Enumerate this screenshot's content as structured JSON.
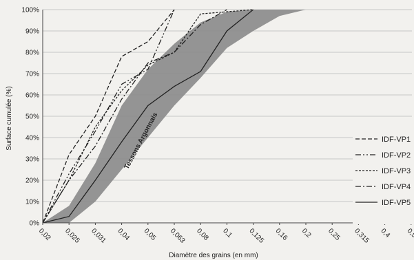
{
  "chart_data": {
    "type": "line",
    "title": "",
    "xlabel": "Diamètre des grains (en mm)",
    "ylabel": "Surface cumulée (%)",
    "x_categories": [
      "0,02",
      "0,025",
      "0,031",
      "0,04",
      "0,05",
      "0,063",
      "0,08",
      "0,1",
      "0,125",
      "0,16",
      "0,2",
      "0,25",
      "0,315",
      "0,4",
      "0,5"
    ],
    "y_ticks": [
      "0%",
      "10%",
      "20%",
      "30%",
      "40%",
      "50%",
      "60%",
      "70%",
      "80%",
      "90%",
      "100%"
    ],
    "ylim": [
      0,
      100
    ],
    "grid": true,
    "legend_position": "right",
    "band": {
      "label": "Tessons Argonnais",
      "color": "#8a8a8a",
      "upper": [
        [
          0,
          0
        ],
        [
          1,
          8
        ],
        [
          2,
          28
        ],
        [
          3,
          55
        ],
        [
          4,
          72
        ],
        [
          5,
          84
        ],
        [
          6,
          94
        ],
        [
          7,
          99
        ],
        [
          8,
          100
        ],
        [
          9,
          100
        ]
      ],
      "lower": [
        [
          0,
          0
        ],
        [
          1,
          0
        ],
        [
          2,
          10
        ],
        [
          3,
          25
        ],
        [
          4,
          40
        ],
        [
          5,
          55
        ],
        [
          6,
          68
        ],
        [
          7,
          82
        ],
        [
          8,
          90
        ],
        [
          9,
          97
        ],
        [
          10,
          100
        ]
      ]
    },
    "series": [
      {
        "name": "IDF-VP1",
        "dash": "6,3",
        "color": "#222222",
        "points": [
          [
            0,
            0
          ],
          [
            1,
            32
          ],
          [
            2,
            50
          ],
          [
            3,
            78
          ],
          [
            4,
            85
          ],
          [
            5,
            100
          ]
        ]
      },
      {
        "name": "IDF-VP2",
        "dash": "8,3,2,3,2,3",
        "color": "#222222",
        "points": [
          [
            0,
            0
          ],
          [
            1,
            23
          ],
          [
            2,
            43
          ],
          [
            3,
            65
          ],
          [
            4,
            72
          ],
          [
            5,
            100
          ]
        ]
      },
      {
        "name": "IDF-VP3",
        "dash": "3,2",
        "color": "#222222",
        "points": [
          [
            0,
            0
          ],
          [
            1,
            20
          ],
          [
            2,
            45
          ],
          [
            3,
            62
          ],
          [
            4,
            74
          ],
          [
            5,
            80
          ],
          [
            6,
            98
          ],
          [
            7,
            99
          ],
          [
            8,
            100
          ]
        ]
      },
      {
        "name": "IDF-VP4",
        "dash": "8,3,2,3",
        "color": "#222222",
        "points": [
          [
            0,
            0
          ],
          [
            1,
            20
          ],
          [
            2,
            36
          ],
          [
            3,
            58
          ],
          [
            4,
            75
          ],
          [
            5,
            80
          ],
          [
            6,
            93
          ],
          [
            7,
            100
          ]
        ]
      },
      {
        "name": "IDF-VP5",
        "dash": "",
        "color": "#222222",
        "points": [
          [
            0,
            0
          ],
          [
            1,
            3
          ],
          [
            2,
            20
          ],
          [
            3,
            38
          ],
          [
            4,
            55
          ],
          [
            5,
            64
          ],
          [
            6,
            71
          ],
          [
            7,
            90
          ],
          [
            8,
            100
          ]
        ]
      }
    ]
  }
}
